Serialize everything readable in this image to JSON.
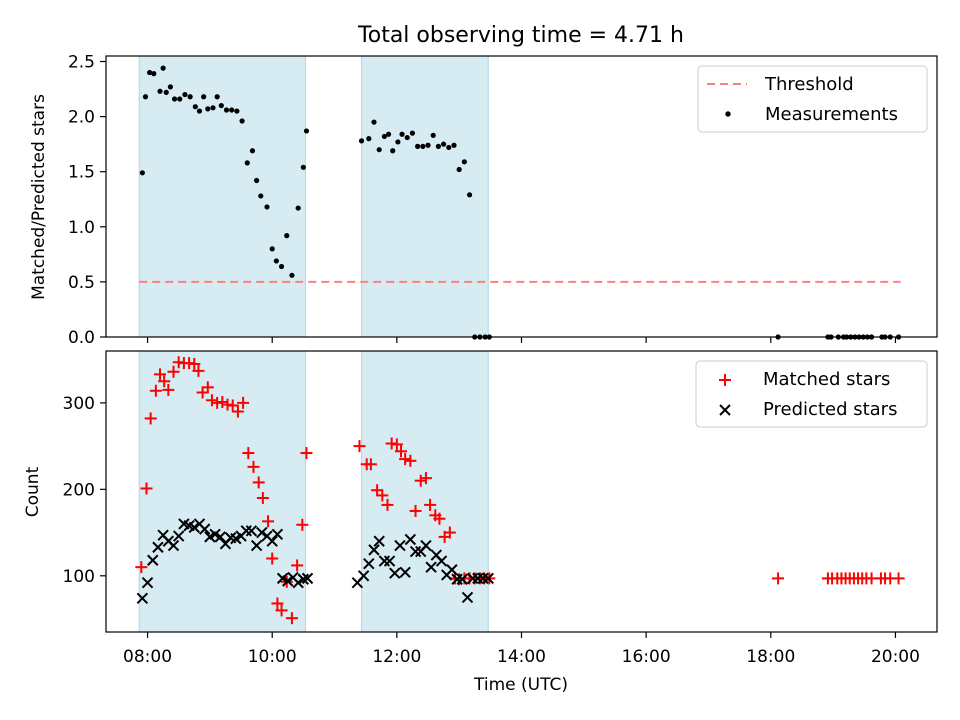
{
  "title": "Total observing time = 4.71 h",
  "chart_data": [
    {
      "type": "scatter",
      "ylabel": "Matched/Predicted stars",
      "xlabel": "",
      "xlim": [
        "07:20",
        "20:40"
      ],
      "ylim": [
        0,
        2.55
      ],
      "yticks": [
        "0.0",
        "0.5",
        "1.0",
        "1.5",
        "2.0",
        "2.5"
      ],
      "grid": false,
      "legend": {
        "position": "top-right",
        "entries": [
          "Threshold",
          "Measurements"
        ]
      },
      "shaded_intervals": [
        [
          "07:52",
          "10:32"
        ],
        [
          "11:26",
          "13:28"
        ]
      ],
      "threshold": {
        "name": "Threshold",
        "y": 0.5,
        "x_range": [
          "07:52",
          "20:05"
        ],
        "color": "#ff7f7f",
        "style": "dashed"
      },
      "series": [
        {
          "name": "Measurements",
          "color": "#000000",
          "x": [
            "07:55",
            "07:58",
            "08:02",
            "08:06",
            "08:12",
            "08:15",
            "08:18",
            "08:22",
            "08:26",
            "08:31",
            "08:36",
            "08:41",
            "08:46",
            "08:50",
            "08:54",
            "08:58",
            "09:03",
            "09:07",
            "09:11",
            "09:16",
            "09:21",
            "09:26",
            "09:31",
            "09:36",
            "09:41",
            "09:45",
            "09:49",
            "09:55",
            "10:00",
            "10:04",
            "10:09",
            "10:14",
            "10:19",
            "10:25",
            "10:30",
            "10:33",
            "11:26",
            "11:33",
            "11:38",
            "11:43",
            "11:48",
            "11:52",
            "11:56",
            "12:01",
            "12:05",
            "12:10",
            "12:15",
            "12:20",
            "12:25",
            "12:30",
            "12:35",
            "12:40",
            "12:45",
            "12:50",
            "12:55",
            "13:00",
            "13:05",
            "13:10",
            "13:15",
            "13:20",
            "13:25",
            "13:29",
            "18:07",
            "18:55",
            "18:58",
            "19:05",
            "19:10",
            "19:13",
            "19:17",
            "19:21",
            "19:25",
            "19:29",
            "19:33",
            "19:37",
            "19:47",
            "19:50",
            "19:55",
            "20:03"
          ],
          "values": [
            1.49,
            2.18,
            2.4,
            2.39,
            2.23,
            2.44,
            2.22,
            2.27,
            2.16,
            2.16,
            2.2,
            2.18,
            2.09,
            2.05,
            2.18,
            2.07,
            2.08,
            2.18,
            2.1,
            2.06,
            2.06,
            2.05,
            1.96,
            1.58,
            1.69,
            1.42,
            1.28,
            1.18,
            0.8,
            0.69,
            0.64,
            0.92,
            0.56,
            1.17,
            1.54,
            1.87,
            1.78,
            1.8,
            1.95,
            1.7,
            1.82,
            1.84,
            1.69,
            1.77,
            1.84,
            1.81,
            1.85,
            1.73,
            1.73,
            1.74,
            1.83,
            1.73,
            1.75,
            1.72,
            1.74,
            1.52,
            1.59,
            1.29,
            0.0,
            0.0,
            0.0,
            0.0,
            0.0,
            0.0,
            0.0,
            0.0,
            0.0,
            0.0,
            0.0,
            0.0,
            0.0,
            0.0,
            0.0,
            0.0,
            0.0,
            0.0,
            0.0,
            0.0
          ]
        }
      ]
    },
    {
      "type": "scatter",
      "ylabel": "Count",
      "xlabel": "Time (UTC)",
      "xlim": [
        "07:20",
        "20:40"
      ],
      "ylim": [
        35,
        360
      ],
      "xticks": [
        "08:00",
        "10:00",
        "12:00",
        "14:00",
        "16:00",
        "18:00",
        "20:00"
      ],
      "yticks": [
        "100",
        "200",
        "300"
      ],
      "grid": false,
      "legend": {
        "position": "top-right",
        "entries": [
          "Matched stars",
          "Predicted stars"
        ]
      },
      "shaded_intervals": [
        [
          "07:52",
          "10:32"
        ],
        [
          "11:26",
          "13:28"
        ]
      ],
      "series": [
        {
          "name": "Matched stars",
          "color": "#ff0000",
          "marker": "+",
          "x": [
            "07:54",
            "07:59",
            "08:03",
            "08:08",
            "08:12",
            "08:16",
            "08:20",
            "08:25",
            "08:30",
            "08:35",
            "08:40",
            "08:45",
            "08:49",
            "08:53",
            "08:58",
            "09:02",
            "09:07",
            "09:12",
            "09:17",
            "09:22",
            "09:27",
            "09:32",
            "09:37",
            "09:42",
            "09:47",
            "09:51",
            "09:56",
            "10:00",
            "10:05",
            "10:09",
            "10:14",
            "10:19",
            "10:24",
            "10:29",
            "10:33",
            "11:24",
            "11:31",
            "11:35",
            "11:41",
            "11:46",
            "11:51",
            "11:55",
            "12:00",
            "12:04",
            "12:08",
            "12:13",
            "12:18",
            "12:23",
            "12:28",
            "12:32",
            "12:37",
            "12:41",
            "12:46",
            "12:51",
            "12:56",
            "13:00",
            "13:05",
            "13:10",
            "13:15",
            "13:20",
            "13:24",
            "13:29",
            "18:07",
            "18:55",
            "18:59",
            "19:04",
            "19:08",
            "19:12",
            "19:16",
            "19:20",
            "19:24",
            "19:28",
            "19:32",
            "19:37",
            "19:46",
            "19:50",
            "19:55",
            "20:03"
          ],
          "values": [
            110,
            201,
            282,
            314,
            333,
            325,
            315,
            336,
            347,
            346,
            346,
            345,
            337,
            312,
            318,
            303,
            300,
            301,
            298,
            297,
            290,
            300,
            242,
            226,
            208,
            190,
            163,
            120,
            68,
            60,
            93,
            51,
            112,
            159,
            242,
            250,
            229,
            229,
            199,
            193,
            182,
            253,
            252,
            244,
            235,
            233,
            175,
            210,
            213,
            182,
            170,
            166,
            145,
            150,
            97,
            96,
            97,
            97,
            97,
            97,
            97,
            97,
            97,
            97,
            97,
            97,
            97,
            97,
            97,
            97,
            97,
            97,
            97,
            97,
            97,
            97,
            97,
            97
          ]
        },
        {
          "name": "Predicted stars",
          "color": "#000000",
          "marker": "x",
          "x": [
            "07:55",
            "08:00",
            "08:05",
            "08:10",
            "08:15",
            "08:20",
            "08:25",
            "08:30",
            "08:35",
            "08:40",
            "08:45",
            "08:50",
            "08:55",
            "09:00",
            "09:05",
            "09:10",
            "09:15",
            "09:20",
            "09:25",
            "09:30",
            "09:35",
            "09:40",
            "09:45",
            "09:50",
            "09:55",
            "10:00",
            "10:05",
            "10:10",
            "10:15",
            "10:20",
            "10:25",
            "10:30",
            "10:34",
            "11:22",
            "11:28",
            "11:33",
            "11:38",
            "11:43",
            "11:48",
            "11:53",
            "11:58",
            "12:03",
            "12:08",
            "12:13",
            "12:18",
            "12:23",
            "12:28",
            "12:33",
            "12:38",
            "12:43",
            "12:48",
            "12:53",
            "12:58",
            "13:03",
            "13:08",
            "13:13",
            "13:18",
            "13:23",
            "13:28"
          ],
          "values": [
            74,
            92,
            118,
            133,
            147,
            140,
            135,
            146,
            160,
            158,
            156,
            160,
            154,
            145,
            148,
            145,
            137,
            144,
            143,
            146,
            152,
            152,
            135,
            150,
            146,
            140,
            148,
            97,
            94,
            98,
            92,
            96,
            97,
            92,
            100,
            114,
            130,
            140,
            117,
            117,
            103,
            135,
            104,
            142,
            128,
            128,
            135,
            110,
            124,
            117,
            101,
            107,
            96,
            96,
            75,
            97,
            97,
            97,
            97
          ]
        }
      ]
    }
  ]
}
